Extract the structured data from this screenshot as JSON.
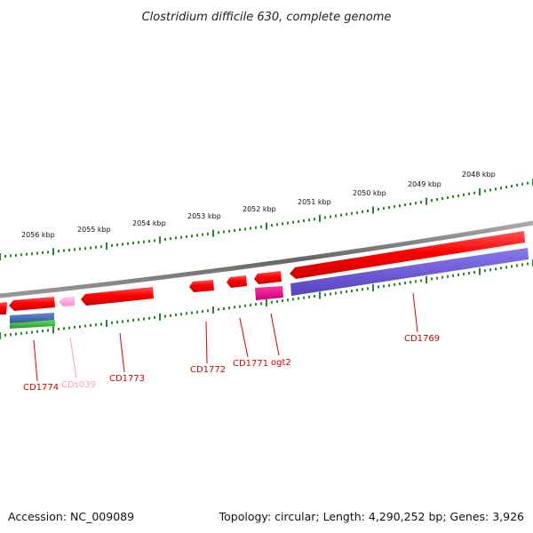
{
  "title": "Clostridium difficile 630, complete genome",
  "footer": {
    "accession": "Accession: NC_009089",
    "topology": "Topology: circular; Length: 4,290,252 bp; Genes: 3,926"
  },
  "scale_labels": [
    "2056 kbp",
    "2055 kbp",
    "2054 kbp",
    "2053 kbp",
    "2052 kbp",
    "2051 kbp",
    "2050 kbp",
    "2049 kbp",
    "2048 kbp"
  ],
  "genes": [
    {
      "label": "CD1774",
      "color": "#d40000"
    },
    {
      "label": "CDs039",
      "color": "#ff99cc"
    },
    {
      "label": "CD1773",
      "color": "#d40000"
    },
    {
      "label": "CD1772",
      "color": "#d40000"
    },
    {
      "label": "CD1771",
      "color": "#d40000"
    },
    {
      "label": "ogt2",
      "color": "#d40000"
    },
    {
      "label": "CD1769",
      "color": "#d40000"
    }
  ],
  "colors": {
    "cds": "#ff0000",
    "rna": "#ff99dd",
    "misc": "#e0007f",
    "feature_purple": "#6655cc",
    "feature_blue": "#4466aa",
    "feature_green": "#33bb33",
    "backbone": "#777777",
    "ticks": "#228822"
  }
}
